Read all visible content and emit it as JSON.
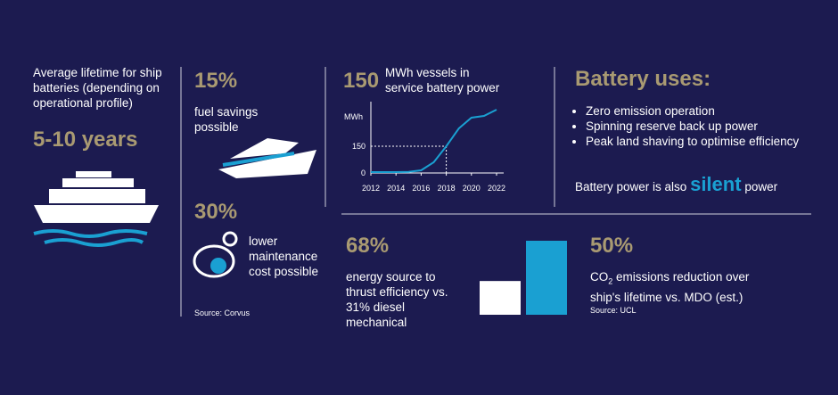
{
  "lifetime": {
    "text": "Average lifetime for ship batteries (depending on operational profile)",
    "value": "5-10 years"
  },
  "fuel": {
    "value": "15%",
    "text": "fuel savings possible"
  },
  "maintenance": {
    "value": "30%",
    "text": "lower maintenance cost possible"
  },
  "source_left": "Source: Corvus",
  "vessels": {
    "value": "150",
    "text": "MWh vessels in service battery power",
    "chart_data": {
      "type": "line",
      "y_label": "MWh",
      "x": [
        2012,
        2013,
        2014,
        2015,
        2016,
        2017,
        2018,
        2019,
        2020,
        2021,
        2022
      ],
      "values": [
        5,
        5,
        5,
        6,
        15,
        60,
        150,
        250,
        310,
        320,
        355
      ],
      "color": "#1aa0d2",
      "xlim": [
        2012,
        2022
      ],
      "ylim": [
        0,
        380
      ],
      "xticks": [
        2012,
        2014,
        2016,
        2018,
        2020,
        2022
      ],
      "yticks": [
        0,
        150
      ]
    }
  },
  "uses": {
    "title": "Battery uses:",
    "items": [
      "Zero emission operation",
      "Spinning reserve back up power",
      "Peak land shaving to optimise efficiency"
    ],
    "note_before": "Battery power is also",
    "note_emphasis": "silent",
    "note_after": "power"
  },
  "efficiency": {
    "value": "68%",
    "text": "energy source to thrust efficiency vs. 31% diesel mechanical",
    "bars": {
      "values": [
        31,
        68
      ],
      "colors": [
        "#ffffff",
        "#1aa0d2"
      ]
    }
  },
  "emissions": {
    "value": "50%",
    "text_prefix": "CO",
    "text_sub": "2",
    "text_rest": " emissions reduction over ship's lifetime vs. MDO (est.)",
    "source": "Source: UCL"
  }
}
